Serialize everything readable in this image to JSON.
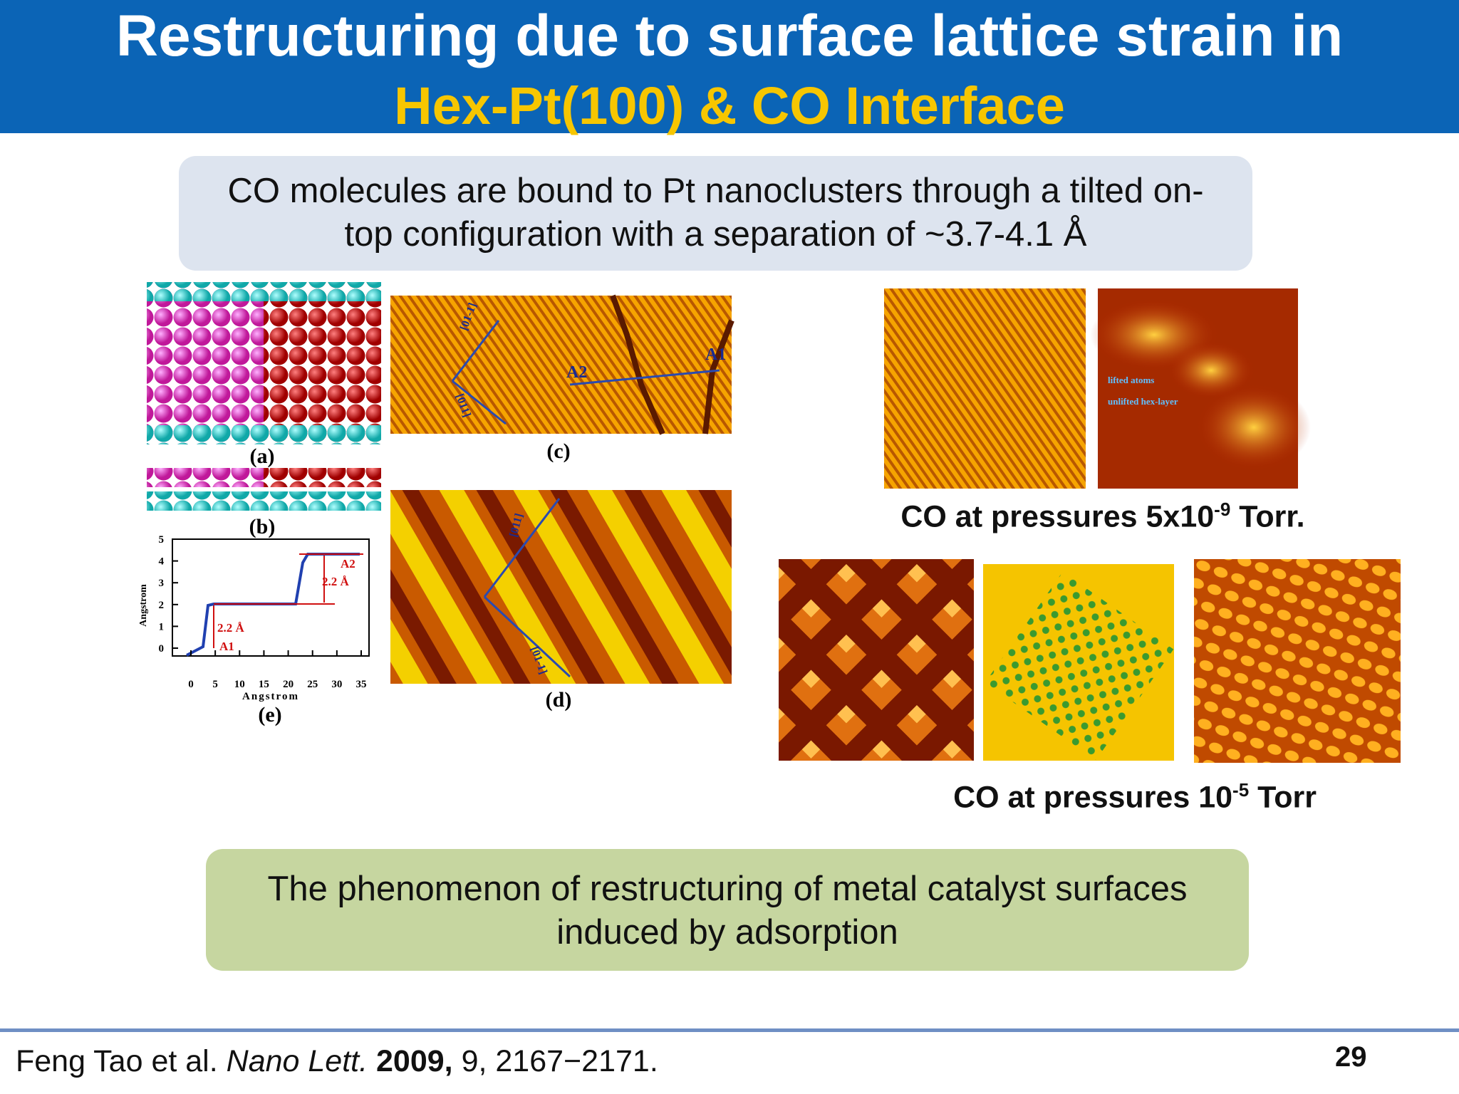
{
  "header": {
    "title": "Restructuring due to surface lattice strain in",
    "subtitle": "Hex-Pt(100) & CO Interface"
  },
  "callout_top": {
    "lines": [
      "CO molecules are bound to Pt nanoclusters through a tilted on-",
      "top configuration with a separation of ~3.7-4.1 Å"
    ]
  },
  "figure_left": {
    "panels": {
      "a": "(a)",
      "b": "(b)",
      "c": "(c)",
      "d": "(d)",
      "e": "(e)"
    },
    "panel_c_labels": [
      "[01-1]",
      "[011]",
      "A2",
      "A1"
    ],
    "panel_d_labels": [
      "[011]",
      "[01-1]"
    ],
    "plot": {
      "x_label": "Angstrom",
      "y_label": "Angstrom",
      "x_ticks": [
        0,
        5,
        10,
        15,
        20,
        25,
        30,
        35
      ],
      "y_ticks": [
        0,
        1,
        2,
        3,
        4,
        5
      ],
      "annotations": [
        "2.2 Å",
        "A1",
        "2.2 Å",
        "A2"
      ]
    }
  },
  "figure_right": {
    "top_labels": [
      "lifted atoms",
      "unlifted hex-layer"
    ],
    "top_caption": {
      "text": "CO at pressures 5x10",
      "sup": "-9",
      "tail": "Torr."
    },
    "bottom_caption": {
      "text": "CO at pressures 10",
      "sup": "-5",
      "tail": "Torr"
    }
  },
  "callout_bottom": {
    "lines": [
      "The phenomenon of restructuring of metal catalyst surfaces",
      "induced by adsorption"
    ]
  },
  "footer": {
    "citation": {
      "authors": "Feng Tao et al.",
      "journal": "Nano Lett.",
      "year": "2009,",
      "details": "9, 2167−2171."
    },
    "page_number": 29
  }
}
